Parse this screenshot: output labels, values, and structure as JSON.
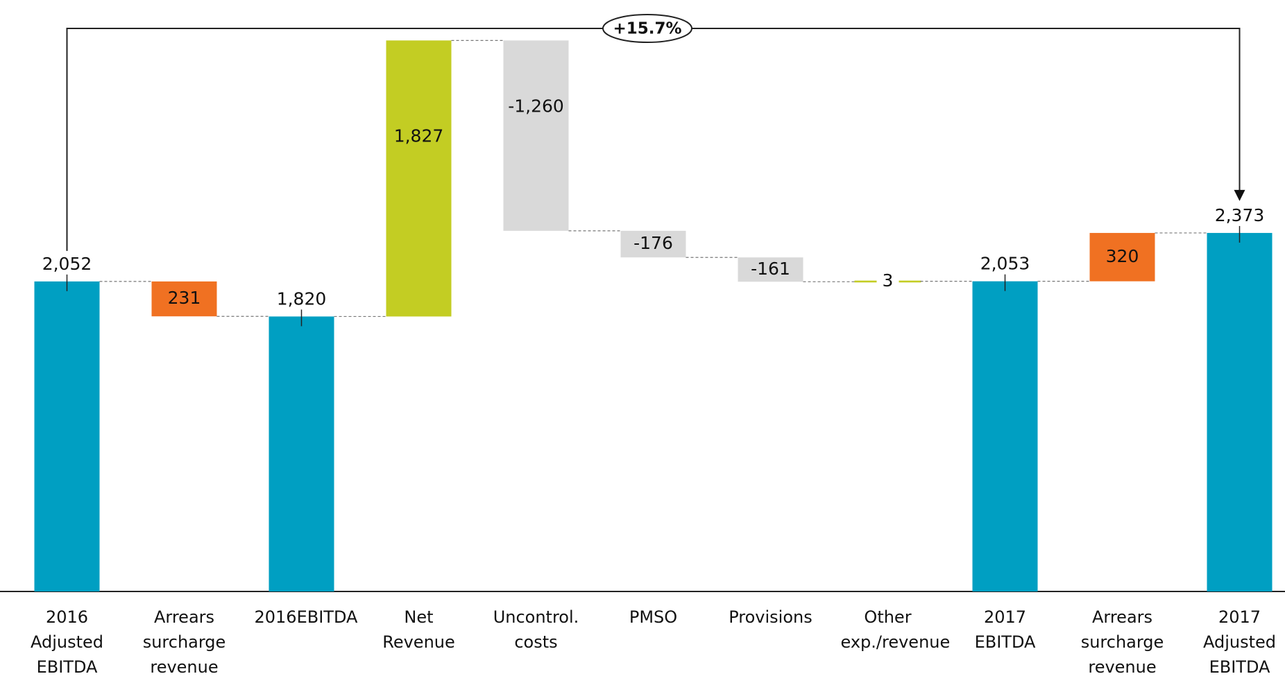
{
  "chart_data": {
    "type": "waterfall",
    "categories": [
      "2016 Adjusted EBITDA",
      "Arrears surcharge revenue",
      "2016EBITDA",
      "Net Revenue",
      "Uncontrol. costs",
      "PMSO",
      "Provisions",
      "Other exp./revenue",
      "2017 EBITDA",
      "Arrears surcharge revenue",
      "2017 Adjusted EBITDA"
    ],
    "values": [
      2052,
      -231,
      1820,
      1827,
      -1260,
      -176,
      -161,
      3,
      2053,
      320,
      2373
    ],
    "value_labels": [
      "2,052",
      "231",
      "1,820",
      "1,827",
      "-1,260",
      "-176",
      "-161",
      "3",
      "2,053",
      "320",
      "2,373"
    ],
    "kinds": [
      "total",
      "delta",
      "total",
      "delta",
      "delta",
      "delta",
      "delta",
      "delta",
      "total",
      "delta",
      "total"
    ],
    "colors": [
      "#009fc2",
      "#f07122",
      "#009fc2",
      "#c3cd23",
      "#d9d9d9",
      "#d9d9d9",
      "#d9d9d9",
      "#c3cd23",
      "#009fc2",
      "#f07122",
      "#009fc2"
    ],
    "ylim": [
      0,
      3800
    ],
    "annotation": "+15.7%"
  }
}
